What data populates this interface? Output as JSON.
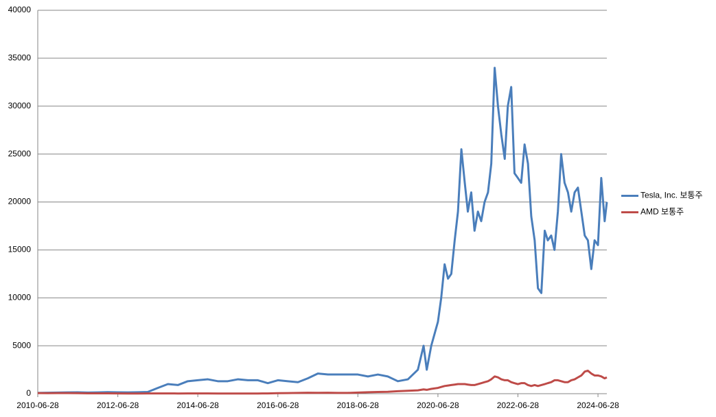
{
  "chart_data": {
    "type": "line",
    "x": [
      "2010-06-28",
      "2010-09-28",
      "2010-12-28",
      "2011-03-28",
      "2011-06-28",
      "2011-09-28",
      "2011-12-28",
      "2012-03-28",
      "2012-06-28",
      "2012-09-28",
      "2012-12-28",
      "2013-03-28",
      "2013-06-28",
      "2013-09-28",
      "2013-12-28",
      "2014-03-28",
      "2014-06-28",
      "2014-09-28",
      "2014-12-28",
      "2015-03-28",
      "2015-06-28",
      "2015-09-28",
      "2015-12-28",
      "2016-03-28",
      "2016-06-28",
      "2016-09-28",
      "2016-12-28",
      "2017-03-28",
      "2017-06-28",
      "2017-09-28",
      "2017-12-28",
      "2018-03-28",
      "2018-06-28",
      "2018-09-28",
      "2018-12-28",
      "2019-03-28",
      "2019-06-28",
      "2019-09-28",
      "2019-12-28",
      "2020-02-18",
      "2020-03-18",
      "2020-04-28",
      "2020-06-28",
      "2020-07-28",
      "2020-08-28",
      "2020-09-28",
      "2020-10-28",
      "2020-11-28",
      "2020-12-28",
      "2021-01-28",
      "2021-02-28",
      "2021-03-28",
      "2021-04-28",
      "2021-05-28",
      "2021-06-28",
      "2021-07-28",
      "2021-08-28",
      "2021-09-28",
      "2021-10-28",
      "2021-11-28",
      "2021-12-28",
      "2022-01-28",
      "2022-02-28",
      "2022-03-28",
      "2022-04-28",
      "2022-05-28",
      "2022-06-28",
      "2022-07-28",
      "2022-08-28",
      "2022-09-28",
      "2022-10-28",
      "2022-11-28",
      "2022-12-28",
      "2023-01-28",
      "2023-02-28",
      "2023-03-28",
      "2023-04-28",
      "2023-05-28",
      "2023-06-28",
      "2023-07-28",
      "2023-08-28",
      "2023-09-28",
      "2023-10-28",
      "2023-11-28",
      "2023-12-28",
      "2024-01-28",
      "2024-02-28",
      "2024-03-28",
      "2024-04-28",
      "2024-05-28",
      "2024-06-28",
      "2024-07-28",
      "2024-08-28",
      "2024-09-17"
    ],
    "series": [
      {
        "name": "Tesla, Inc. 보통주",
        "color": "#4a7ebb",
        "values": [
          80,
          100,
          120,
          130,
          140,
          120,
          130,
          160,
          140,
          130,
          150,
          180,
          600,
          1000,
          900,
          1300,
          1400,
          1500,
          1300,
          1300,
          1500,
          1400,
          1400,
          1100,
          1400,
          1300,
          1200,
          1600,
          2100,
          2000,
          2000,
          2000,
          2000,
          1800,
          2000,
          1800,
          1300,
          1500,
          2500,
          5000,
          2500,
          5000,
          7500,
          10000,
          13500,
          12000,
          12500,
          16000,
          19000,
          25500,
          22000,
          19000,
          21000,
          17000,
          19000,
          18000,
          20000,
          21000,
          24000,
          34000,
          30000,
          27000,
          24500,
          30000,
          32000,
          23000,
          22500,
          22000,
          26000,
          24000,
          18500,
          16000,
          11000,
          10500,
          17000,
          16000,
          16500,
          15000,
          19000,
          25000,
          22000,
          21000,
          19000,
          21000,
          21500,
          19000,
          16500,
          16000,
          13000,
          16000,
          15500,
          22500,
          18000,
          20000
        ]
      },
      {
        "name": "AMD 보통주",
        "color": "#be4b48",
        "values": [
          60,
          50,
          60,
          60,
          50,
          40,
          40,
          40,
          30,
          20,
          20,
          30,
          30,
          30,
          20,
          30,
          30,
          30,
          20,
          20,
          20,
          20,
          20,
          30,
          50,
          60,
          80,
          100,
          90,
          100,
          80,
          80,
          120,
          150,
          180,
          200,
          260,
          300,
          350,
          450,
          400,
          500,
          600,
          700,
          800,
          850,
          900,
          950,
          1000,
          1000,
          1000,
          950,
          900,
          900,
          1000,
          1100,
          1200,
          1300,
          1500,
          1800,
          1700,
          1500,
          1400,
          1400,
          1200,
          1100,
          1000,
          1100,
          1100,
          900,
          800,
          900,
          800,
          900,
          1000,
          1100,
          1200,
          1400,
          1400,
          1300,
          1200,
          1200,
          1400,
          1500,
          1700,
          1900,
          2300,
          2400,
          2100,
          1900,
          1900,
          1800,
          1600,
          1700
        ]
      }
    ],
    "xlim": [
      "2010-06-28",
      "2024-09-17"
    ],
    "xticks": [
      "2010-06-28",
      "2012-06-28",
      "2014-06-28",
      "2016-06-28",
      "2018-06-28",
      "2020-06-28",
      "2022-06-28",
      "2024-06-28"
    ],
    "ylim": [
      0,
      40000
    ],
    "yticks": [
      0,
      5000,
      10000,
      15000,
      20000,
      25000,
      30000,
      35000,
      40000
    ],
    "grid": true,
    "legend": "right"
  }
}
